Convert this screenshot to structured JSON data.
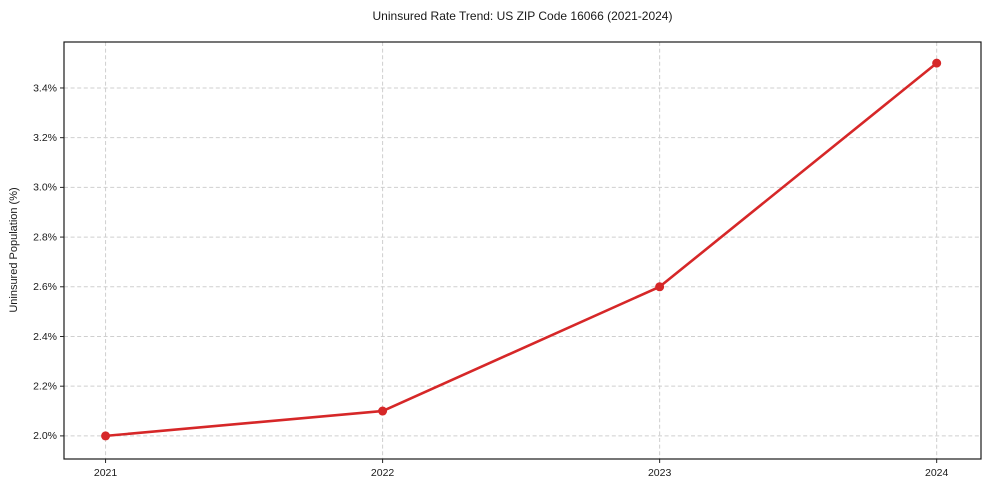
{
  "chart_data": {
    "type": "line",
    "title": "Uninsured Rate Trend: US ZIP Code 16066 (2021-2024)",
    "xlabel": "",
    "ylabel": "Uninsured Population (%)",
    "x": [
      2021,
      2022,
      2023,
      2024
    ],
    "values": [
      2.0,
      2.1,
      2.6,
      3.5
    ],
    "xticks": [
      2021,
      2022,
      2023,
      2024
    ],
    "xtick_labels": [
      "2021",
      "2022",
      "2023",
      "2024"
    ],
    "yticks": [
      2.0,
      2.2,
      2.4,
      2.6,
      2.8,
      3.0,
      3.2,
      3.4
    ],
    "ytick_labels": [
      "2.0%",
      "2.2%",
      "2.4%",
      "2.6%",
      "2.8%",
      "3.0%",
      "3.2%",
      "3.4%"
    ],
    "xlim": [
      2020.85,
      2024.16
    ],
    "ylim": [
      1.907,
      3.585
    ],
    "grid": true,
    "legend_position": "none",
    "line_color": "#d62728",
    "marker": "circle",
    "background_color": "#ffffff"
  }
}
